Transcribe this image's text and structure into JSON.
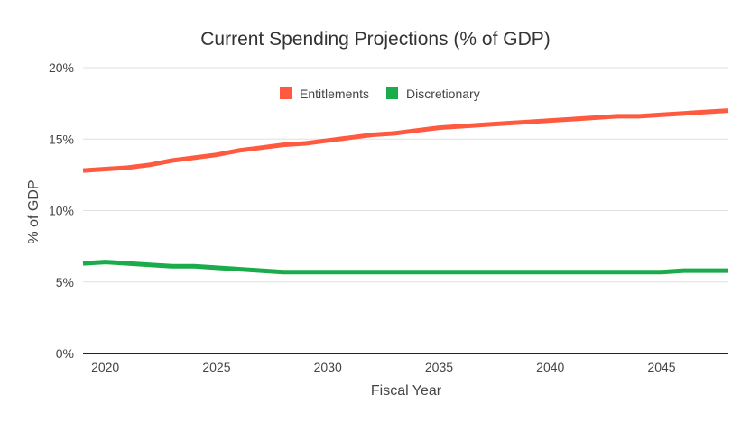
{
  "chart_data": {
    "type": "line",
    "title": "Current Spending Projections (% of GDP)",
    "xlabel": "Fiscal Year",
    "ylabel": "% of GDP",
    "xlim": [
      2019,
      2048
    ],
    "ylim": [
      0,
      20
    ],
    "x_ticks": [
      2020,
      2025,
      2030,
      2035,
      2040,
      2045
    ],
    "y_ticks": [
      0,
      5,
      10,
      15,
      20
    ],
    "y_tick_labels": [
      "0%",
      "5%",
      "10%",
      "15%",
      "20%"
    ],
    "grid": true,
    "legend_position": "top-center",
    "x": [
      2019,
      2020,
      2021,
      2022,
      2023,
      2024,
      2025,
      2026,
      2027,
      2028,
      2029,
      2030,
      2031,
      2032,
      2033,
      2034,
      2035,
      2036,
      2037,
      2038,
      2039,
      2040,
      2041,
      2042,
      2043,
      2044,
      2045,
      2046,
      2047,
      2048
    ],
    "series": [
      {
        "name": "Entitlements",
        "color": "#ff5a40",
        "values": [
          12.8,
          12.9,
          13.0,
          13.2,
          13.5,
          13.7,
          13.9,
          14.2,
          14.4,
          14.6,
          14.7,
          14.9,
          15.1,
          15.3,
          15.4,
          15.6,
          15.8,
          15.9,
          16.0,
          16.1,
          16.2,
          16.3,
          16.4,
          16.5,
          16.6,
          16.6,
          16.7,
          16.8,
          16.9,
          17.0
        ]
      },
      {
        "name": "Discretionary",
        "color": "#1aab4a",
        "values": [
          6.3,
          6.4,
          6.3,
          6.2,
          6.1,
          6.1,
          6.0,
          5.9,
          5.8,
          5.7,
          5.7,
          5.7,
          5.7,
          5.7,
          5.7,
          5.7,
          5.7,
          5.7,
          5.7,
          5.7,
          5.7,
          5.7,
          5.7,
          5.7,
          5.7,
          5.7,
          5.7,
          5.8,
          5.8,
          5.8
        ]
      }
    ]
  }
}
